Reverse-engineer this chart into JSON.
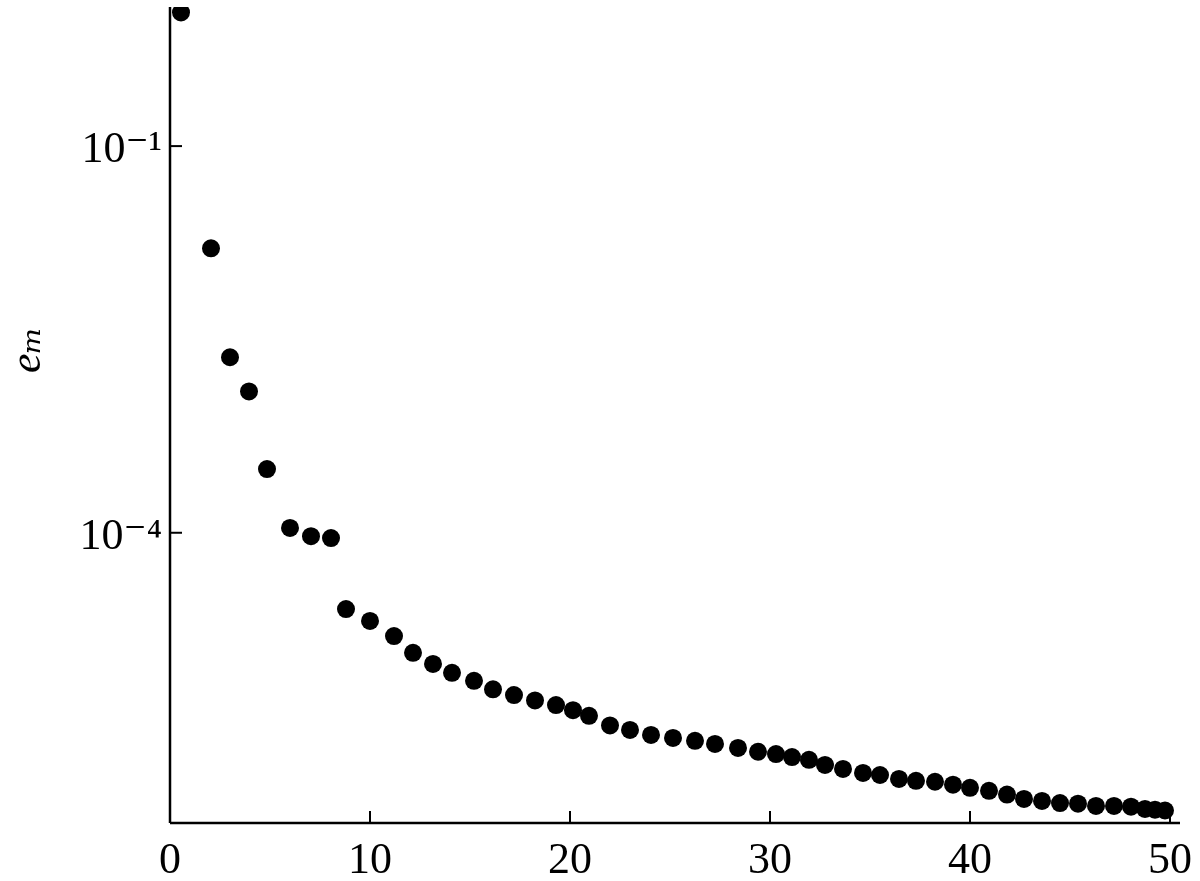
{
  "chart_data": {
    "type": "scatter",
    "ylabel": "eₘ",
    "x": [
      0.55,
      2.05,
      3.0,
      3.95,
      4.85,
      6.0,
      7.05,
      8.05,
      8.8,
      10.0,
      11.2,
      12.15,
      13.15,
      14.1,
      15.2,
      16.15,
      17.2,
      18.25,
      19.3,
      20.15,
      20.95,
      22.0,
      23.0,
      24.05,
      25.15,
      26.25,
      27.25,
      28.4,
      29.4,
      30.3,
      31.1,
      31.95,
      32.75,
      33.65,
      34.65,
      35.5,
      36.45,
      37.3,
      38.25,
      39.15,
      40.0,
      40.95,
      41.85,
      42.7,
      43.6,
      44.5,
      45.4,
      46.3,
      47.2,
      48.05,
      48.75,
      49.25,
      49.75
    ],
    "values": [
      1.09,
      0.0161,
      0.0023,
      0.00125,
      0.000312,
      0.000109,
      9.4e-05,
      9.1e-05,
      2.56e-05,
      2.07e-05,
      1.58e-05,
      1.17e-05,
      9.6e-06,
      8.2e-06,
      7.1e-06,
      6.1e-06,
      5.5e-06,
      5e-06,
      4.6e-06,
      4.2e-06,
      3.8e-06,
      3.2e-06,
      2.95e-06,
      2.7e-06,
      2.56e-06,
      2.43e-06,
      2.3e-06,
      2.14e-06,
      2e-06,
      1.92e-06,
      1.82e-06,
      1.73e-06,
      1.58e-06,
      1.47e-06,
      1.37e-06,
      1.32e-06,
      1.23e-06,
      1.19e-06,
      1.17e-06,
      1.11e-06,
      1.05e-06,
      9.95e-07,
      9.3e-07,
      8.6e-07,
      8.3e-07,
      8e-07,
      7.9e-07,
      7.6e-07,
      7.6e-07,
      7.5e-07,
      7.2e-07,
      7.1e-07,
      7e-07
    ],
    "color": "#000000",
    "marker": "circle",
    "log": "y",
    "xlim": [
      0,
      50.5
    ],
    "xticks": [
      0,
      10,
      20,
      30,
      40,
      50
    ],
    "ylim": [
      5.6e-07,
      1.2
    ],
    "yticks": [
      {
        "value": 0.1,
        "label": "10⁻¹"
      },
      {
        "value": 0.0001,
        "label": "10⁻⁴"
      }
    ]
  }
}
